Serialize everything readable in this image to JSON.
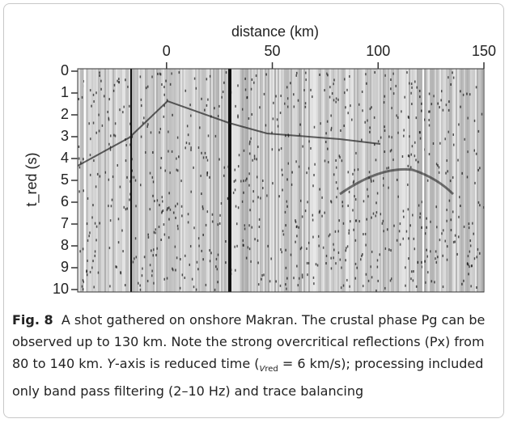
{
  "chart_data": {
    "type": "seismic",
    "xlabel": "distance (km)",
    "ylabel": "t_red (s)",
    "xlim": [
      -42,
      150
    ],
    "xticks": [
      0,
      50,
      100,
      150
    ],
    "ylim": [
      0,
      10
    ],
    "yticks": [
      0,
      1,
      2,
      3,
      4,
      5,
      6,
      7,
      8,
      9,
      10
    ]
  },
  "caption": {
    "label": "Fig. 8",
    "text1": "A shot gathered on onshore Makran. The crustal phase Pg can be observed up to 130 km. Note the strong overcritical reflections (Px) from 80 to 140 km. ",
    "italic1": "Y",
    "text2": "-axis is reduced time (",
    "var": "V",
    "sub": "red",
    "text3": " = 6 km/s); processing included only band pass filtering (2–10 Hz) and trace balancing"
  }
}
